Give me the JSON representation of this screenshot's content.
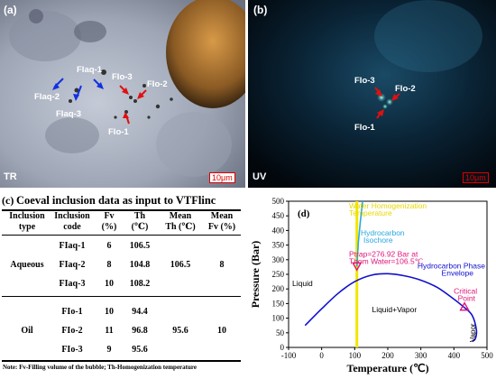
{
  "panel_a": {
    "label": "(a)",
    "mode": "TR",
    "scale": "10μm",
    "annotations": [
      "FIaq-1",
      "FIaq-2",
      "FIaq-3",
      "FIo-3",
      "FIo-2",
      "FIo-1"
    ]
  },
  "panel_b": {
    "label": "(b)",
    "mode": "UV",
    "scale": "10μm",
    "annotations": [
      "FIo-3",
      "FIo-2",
      "FIo-1"
    ]
  },
  "panel_c": {
    "label": "(c)",
    "title": "Coeval inclusion data as input to VTFlinc",
    "headers": [
      [
        "Inclusion",
        "type"
      ],
      [
        "Inclusion",
        "code"
      ],
      [
        "Fv",
        "(%)"
      ],
      [
        "Th",
        "(℃)"
      ],
      [
        "Mean",
        "Th (℃)"
      ],
      [
        "Mean",
        "Fv (%)"
      ]
    ],
    "groups": [
      {
        "type": "Aqueous",
        "rows": [
          {
            "code": "FIaq-1",
            "fv": "6",
            "th": "106.5"
          },
          {
            "code": "FIaq-2",
            "fv": "8",
            "th": "104.8"
          },
          {
            "code": "FIaq-3",
            "fv": "10",
            "th": "108.2"
          }
        ],
        "mean_th": "106.5",
        "mean_fv": "8"
      },
      {
        "type": "Oil",
        "rows": [
          {
            "code": "FIo-1",
            "fv": "10",
            "th": "94.4"
          },
          {
            "code": "FIo-2",
            "fv": "11",
            "th": "96.8"
          },
          {
            "code": "FIo-3",
            "fv": "9",
            "th": "95.6"
          }
        ],
        "mean_th": "95.6",
        "mean_fv": "10"
      }
    ],
    "note": "Note: Fv-Filling volume of the bubble; Th-Homogenization temperature"
  },
  "chart_data": {
    "type": "line",
    "panel_label": "(d)",
    "xlabel": "Temperature (℃)",
    "ylabel": "Pressure (Bar)",
    "xlim": [
      -100,
      500
    ],
    "ylim": [
      0,
      500
    ],
    "xticks": [
      -100,
      0,
      100,
      200,
      300,
      400,
      500
    ],
    "yticks": [
      0,
      50,
      100,
      150,
      200,
      250,
      300,
      350,
      400,
      450,
      500
    ],
    "series": [
      {
        "name": "Hydrocarbon Phase Envelope",
        "color": "#1010d0",
        "x": [
          -50,
          0,
          50,
          100,
          150,
          200,
          250,
          300,
          350,
          400,
          430,
          455,
          468,
          465,
          455
        ],
        "y": [
          75,
          132,
          185,
          225,
          247,
          252,
          245,
          230,
          205,
          165,
          138,
          110,
          60,
          30,
          20
        ]
      },
      {
        "name": "Hydrocarbon Isochore",
        "color": "#29a8e0",
        "x": [
          106.5,
          111,
          117,
          124
        ],
        "y": [
          276.92,
          360,
          430,
          500
        ]
      },
      {
        "name": "Water Homogenization Temperature",
        "color": "#f2e600",
        "x": [
          106.5,
          106.5
        ],
        "y": [
          0,
          500
        ]
      }
    ],
    "annotations": [
      {
        "text": "Water Homogenization",
        "color": "#e8d800"
      },
      {
        "text": "Temperature",
        "color": "#e8d800"
      },
      {
        "text": "Hydrocarbon",
        "color": "#29a8e0"
      },
      {
        "text": "Isochore",
        "color": "#29a8e0"
      },
      {
        "text": "Ptrap=276.92 Bar at",
        "color": "#e0157a"
      },
      {
        "text": "Thom Water=106.5℃",
        "color": "#e0157a"
      },
      {
        "text": "Hydrocarbon Phase",
        "color": "#1010d0"
      },
      {
        "text": "Envelope",
        "color": "#1010d0"
      },
      {
        "text": "Critical",
        "color": "#e0157a"
      },
      {
        "text": "Point",
        "color": "#e0157a"
      },
      {
        "text": "Liquid",
        "color": "#000000"
      },
      {
        "text": "Liquid+Vapor",
        "color": "#000000"
      },
      {
        "text": "Vapor",
        "color": "#000000"
      }
    ],
    "points": [
      {
        "name": "trap",
        "x": 106.5,
        "y": 276.92,
        "marker": "triangle-down",
        "color": "#e0157a"
      },
      {
        "name": "critical",
        "x": 432,
        "y": 140,
        "marker": "triangle-up",
        "color": "#e0157a"
      }
    ]
  }
}
